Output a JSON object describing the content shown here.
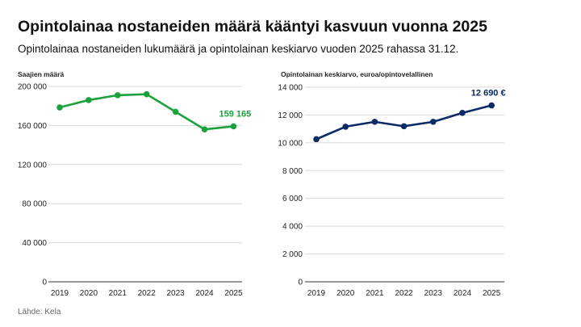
{
  "title": "Opintolainaa nostaneiden määrä kääntyi kasvuun vuonna 2025",
  "subtitle": "Opintolainaa nostaneiden lukumäärä ja opintolainan keskiarvo vuoden 2025 rahassa 31.12.",
  "source": "Lähde: Kela",
  "chart_data": [
    {
      "type": "line",
      "ylabel": "Saajien määrä",
      "x": [
        "2019",
        "2020",
        "2021",
        "2022",
        "2023",
        "2024",
        "2025"
      ],
      "values": [
        178500,
        186000,
        191000,
        192000,
        174000,
        156000,
        159165
      ],
      "ylim": [
        0,
        200000
      ],
      "yticks": [
        0,
        40000,
        80000,
        120000,
        160000,
        200000
      ],
      "ytick_labels": [
        "0",
        "40 000",
        "80 000",
        "120 000",
        "160 000",
        "200 000"
      ],
      "end_label": "159 165",
      "color": "#1aa23c",
      "grid": true
    },
    {
      "type": "line",
      "ylabel": "Opintolainan keskiarvo, euroa/opintovelallinen",
      "x": [
        "2019",
        "2020",
        "2021",
        "2022",
        "2023",
        "2024",
        "2025"
      ],
      "values": [
        10260,
        11160,
        11510,
        11190,
        11510,
        12150,
        12690
      ],
      "ylim": [
        0,
        14000
      ],
      "yticks": [
        0,
        2000,
        4000,
        6000,
        8000,
        10000,
        12000,
        14000
      ],
      "ytick_labels": [
        "0",
        "2 000",
        "4 000",
        "6 000",
        "8 000",
        "10 000",
        "12 000",
        "14 000"
      ],
      "end_label": "12 690 €",
      "color": "#0b2a66",
      "grid": true
    }
  ]
}
